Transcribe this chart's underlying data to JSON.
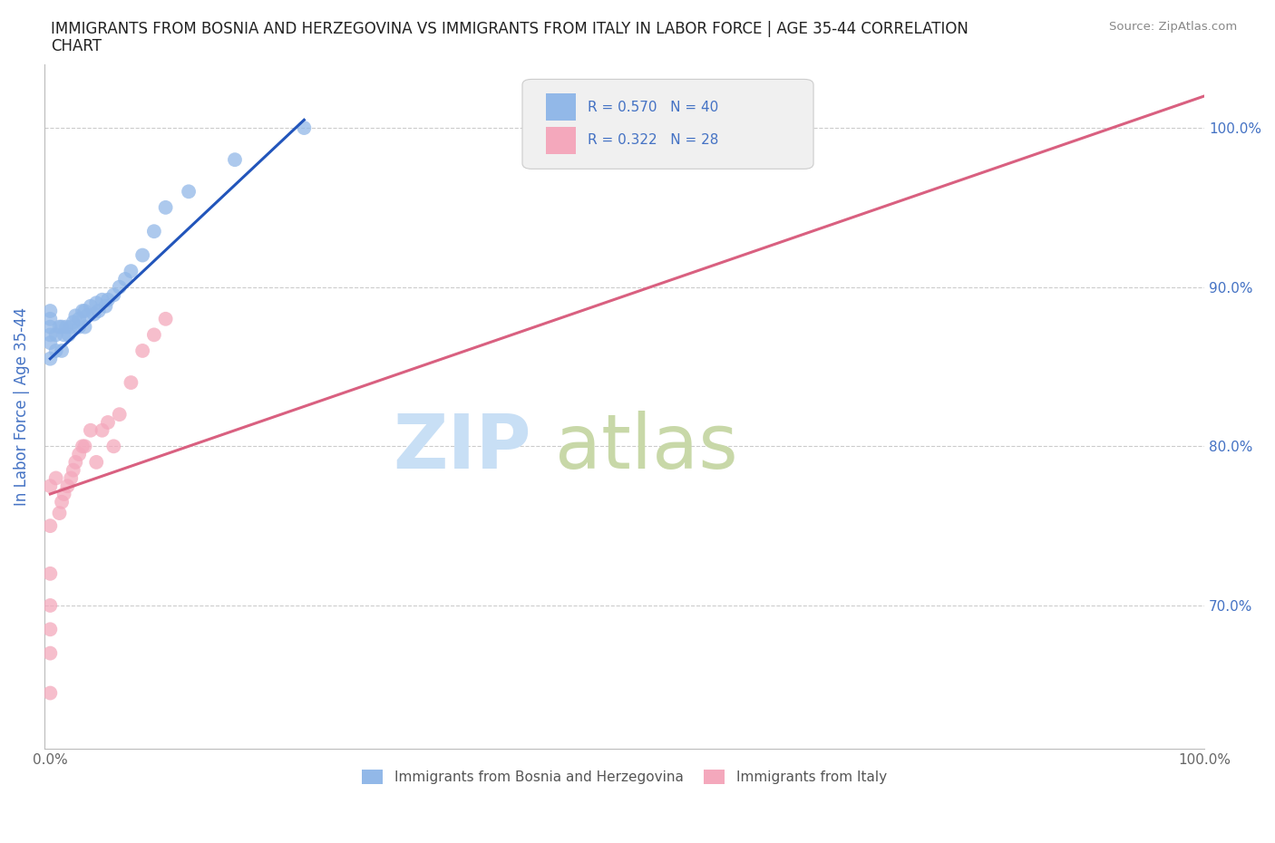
{
  "title_line1": "IMMIGRANTS FROM BOSNIA AND HERZEGOVINA VS IMMIGRANTS FROM ITALY IN LABOR FORCE | AGE 35-44 CORRELATION",
  "title_line2": "CHART",
  "source_text": "Source: ZipAtlas.com",
  "ylabel": "In Labor Force | Age 35-44",
  "r_bosnia": 0.57,
  "n_bosnia": 40,
  "r_italy": 0.322,
  "n_italy": 28,
  "color_bosnia": "#92b8e8",
  "color_italy": "#f4a8bc",
  "line_color_bosnia": "#2255bb",
  "line_color_italy": "#d96080",
  "legend_label_bosnia": "Immigrants from Bosnia and Herzegovina",
  "legend_label_italy": "Immigrants from Italy",
  "bosnia_x": [
    0.0,
    0.0,
    0.0,
    0.0,
    0.0,
    0.0,
    0.005,
    0.005,
    0.008,
    0.01,
    0.01,
    0.012,
    0.014,
    0.016,
    0.018,
    0.02,
    0.022,
    0.025,
    0.025,
    0.028,
    0.03,
    0.03,
    0.032,
    0.035,
    0.038,
    0.04,
    0.042,
    0.045,
    0.048,
    0.05,
    0.055,
    0.06,
    0.065,
    0.07,
    0.08,
    0.09,
    0.1,
    0.12,
    0.16,
    0.22
  ],
  "bosnia_y": [
    0.855,
    0.865,
    0.87,
    0.875,
    0.88,
    0.885,
    0.86,
    0.87,
    0.875,
    0.86,
    0.875,
    0.87,
    0.875,
    0.87,
    0.875,
    0.878,
    0.882,
    0.875,
    0.88,
    0.885,
    0.875,
    0.885,
    0.882,
    0.888,
    0.883,
    0.89,
    0.885,
    0.892,
    0.888,
    0.892,
    0.895,
    0.9,
    0.905,
    0.91,
    0.92,
    0.935,
    0.95,
    0.96,
    0.98,
    1.0
  ],
  "italy_x": [
    0.0,
    0.0,
    0.0,
    0.0,
    0.0,
    0.0,
    0.0,
    0.005,
    0.008,
    0.01,
    0.012,
    0.015,
    0.018,
    0.02,
    0.022,
    0.025,
    0.028,
    0.03,
    0.035,
    0.04,
    0.045,
    0.05,
    0.055,
    0.06,
    0.07,
    0.08,
    0.09,
    0.1
  ],
  "italy_y": [
    0.645,
    0.67,
    0.685,
    0.7,
    0.72,
    0.75,
    0.775,
    0.78,
    0.758,
    0.765,
    0.77,
    0.775,
    0.78,
    0.785,
    0.79,
    0.795,
    0.8,
    0.8,
    0.81,
    0.79,
    0.81,
    0.815,
    0.8,
    0.82,
    0.84,
    0.86,
    0.87,
    0.88
  ],
  "xlim": [
    -0.005,
    1.0
  ],
  "ylim": [
    0.61,
    1.04
  ],
  "yticks": [
    0.7,
    0.8,
    0.9,
    1.0
  ],
  "ytick_labels": [
    "70.0%",
    "80.0%",
    "90.0%",
    "100.0%"
  ],
  "xticks": [
    0.0,
    1.0
  ],
  "xtick_labels": [
    "0.0%",
    "100.0%"
  ],
  "bosnia_line_x": [
    0.0,
    0.22
  ],
  "italy_line_x": [
    0.0,
    1.0
  ]
}
